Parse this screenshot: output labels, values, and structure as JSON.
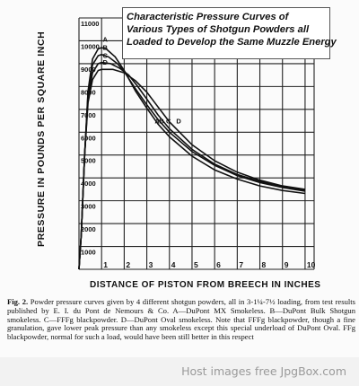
{
  "chart_data": {
    "type": "line",
    "title_lines": [
      "Characteristic Pressure Curves of",
      "Various Types of Shotgun Powders all",
      "Loaded to Develop the Same Muzzle Energy"
    ],
    "xlabel": "DISTANCE OF PISTON FROM BREECH IN INCHES",
    "ylabel": "PRESSURE IN POUNDS PER SQUARE INCH",
    "xlim": [
      0,
      10.4
    ],
    "ylim": [
      0,
      11000
    ],
    "x_ticks": [
      "1",
      "2",
      "3",
      "4",
      "5",
      "6",
      "7",
      "8",
      "9",
      "10"
    ],
    "y_ticks": [
      "1000",
      "2000",
      "3000",
      "4000",
      "5000",
      "6000",
      "7000",
      "8000",
      "9000",
      "10000",
      "11000"
    ],
    "grid": true,
    "series": [
      {
        "name": "A",
        "points": [
          [
            0,
            0
          ],
          [
            0.1,
            1500
          ],
          [
            0.25,
            5000
          ],
          [
            0.4,
            7800
          ],
          [
            0.6,
            9200
          ],
          [
            0.85,
            9650
          ],
          [
            1.0,
            9700
          ],
          [
            1.2,
            9650
          ],
          [
            1.6,
            9300
          ],
          [
            2.0,
            8700
          ],
          [
            2.5,
            7800
          ],
          [
            3.0,
            7050
          ],
          [
            3.5,
            6350
          ],
          [
            4.0,
            5800
          ],
          [
            5.0,
            4950
          ],
          [
            6.0,
            4350
          ],
          [
            7.0,
            3950
          ],
          [
            8.0,
            3650
          ],
          [
            9.0,
            3450
          ],
          [
            10.0,
            3320
          ]
        ]
      },
      {
        "name": "B",
        "points": [
          [
            0,
            0
          ],
          [
            0.1,
            1500
          ],
          [
            0.25,
            5000
          ],
          [
            0.4,
            7700
          ],
          [
            0.6,
            8950
          ],
          [
            0.85,
            9350
          ],
          [
            1.0,
            9400
          ],
          [
            1.3,
            9300
          ],
          [
            1.7,
            9000
          ],
          [
            2.0,
            8650
          ],
          [
            2.5,
            7900
          ],
          [
            3.0,
            7200
          ],
          [
            3.5,
            6550
          ],
          [
            4.0,
            6000
          ],
          [
            5.0,
            5150
          ],
          [
            6.0,
            4550
          ],
          [
            7.0,
            4100
          ],
          [
            8.0,
            3800
          ],
          [
            9.0,
            3580
          ],
          [
            10.0,
            3420
          ]
        ]
      },
      {
        "name": "C",
        "points": [
          [
            0,
            0
          ],
          [
            0.1,
            1500
          ],
          [
            0.25,
            5000
          ],
          [
            0.4,
            7500
          ],
          [
            0.6,
            8600
          ],
          [
            0.85,
            9000
          ],
          [
            1.0,
            9050
          ],
          [
            1.4,
            9000
          ],
          [
            1.8,
            8800
          ],
          [
            2.2,
            8500
          ],
          [
            2.6,
            8000
          ],
          [
            3.0,
            7450
          ],
          [
            3.5,
            6750
          ],
          [
            4.0,
            6150
          ],
          [
            5.0,
            5250
          ],
          [
            6.0,
            4600
          ],
          [
            7.0,
            4150
          ],
          [
            8.0,
            3850
          ],
          [
            9.0,
            3600
          ],
          [
            10.0,
            3450
          ]
        ]
      },
      {
        "name": "D",
        "points": [
          [
            0,
            0
          ],
          [
            0.1,
            1500
          ],
          [
            0.25,
            5000
          ],
          [
            0.4,
            7300
          ],
          [
            0.6,
            8300
          ],
          [
            0.85,
            8700
          ],
          [
            1.0,
            8750
          ],
          [
            1.5,
            8750
          ],
          [
            2.0,
            8600
          ],
          [
            2.5,
            8250
          ],
          [
            3.0,
            7750
          ],
          [
            3.5,
            7100
          ],
          [
            4.0,
            6450
          ],
          [
            5.0,
            5450
          ],
          [
            6.0,
            4750
          ],
          [
            7.0,
            4250
          ],
          [
            8.0,
            3900
          ],
          [
            9.0,
            3650
          ],
          [
            10.0,
            3500
          ]
        ]
      }
    ],
    "curve_labels_top": [
      "A",
      "B",
      "C",
      "D"
    ],
    "curve_labels_mid": [
      "A",
      "B",
      "C",
      "D"
    ]
  },
  "caption": {
    "lead": "Fig. 2.",
    "text": "Powder pressure curves given by 4 different shotgun powders, all in 3-1¼-7½ loading, from test results published by E. I. du Pont de Nemours & Co. A—DuPont MX Smokeless. B—DuPont Bulk Shotgun smokeless. C—FFFg blackpowder. D—DuPont Oval smokeless. Note that FFFg blackpowder, though a fine granulation, gave lower peak pressure than any smokeless except this special underload of DuPont Oval. FFg blackpowder, normal for such a load, would have been still better in this respect"
  },
  "footer": {
    "text": "Host images free JpgBox.com"
  }
}
